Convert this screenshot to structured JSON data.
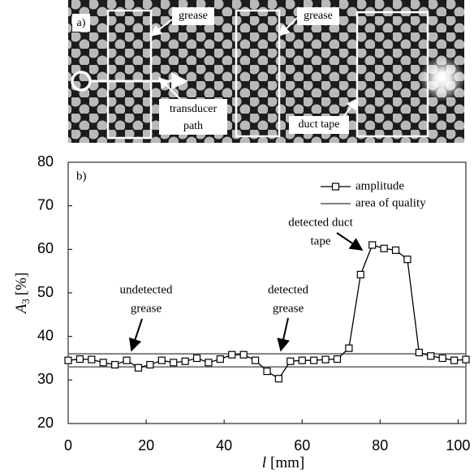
{
  "photo_labels": {
    "panel": "a)",
    "grease_1": "grease",
    "grease_2": "grease",
    "transducer": [
      "transducer",
      "path"
    ],
    "duct_tape": "duct tape"
  },
  "chart_data": {
    "type": "line",
    "panel": "b)",
    "xlabel": {
      "symbol": "l",
      "unit": "[mm]"
    },
    "ylabel": {
      "symbol": "A",
      "subscript": "3",
      "unit": "[%]"
    },
    "x": [
      0,
      3,
      6,
      9,
      12,
      15,
      18,
      21,
      24,
      27,
      30,
      33,
      36,
      39,
      42,
      45,
      48,
      51,
      54,
      57,
      60,
      63,
      66,
      69,
      72,
      75,
      78,
      81,
      84,
      87,
      90,
      93,
      96,
      99,
      102
    ],
    "series": [
      {
        "name": "amplitude",
        "color": "#000000",
        "values": [
          34.5,
          34.8,
          34.7,
          34,
          33.5,
          34.5,
          32.8,
          33.5,
          34.5,
          34,
          34.3,
          35,
          34,
          34.8,
          35.8,
          35.8,
          34.5,
          32,
          30.3,
          34.3,
          34.5,
          34.5,
          34.7,
          34.8,
          37.3,
          54.2,
          61,
          60.2,
          59.8,
          57.7,
          36.3,
          35.5,
          35,
          34.5,
          34.7
        ]
      }
    ],
    "reference_lines": {
      "name": "area of quality",
      "color": "#808080",
      "values": [
        33,
        36
      ]
    },
    "xlim": [
      0,
      102
    ],
    "ylim": [
      20,
      80
    ],
    "xticks": [
      0,
      20,
      40,
      60,
      80,
      100
    ],
    "yticks": [
      20,
      30,
      40,
      50,
      60,
      70,
      80
    ],
    "annotations": [
      {
        "lines": [
          "undetected",
          "grease"
        ]
      },
      {
        "lines": [
          "detected",
          "grease"
        ]
      },
      {
        "lines": [
          "detected duct",
          "tape"
        ]
      }
    ]
  }
}
